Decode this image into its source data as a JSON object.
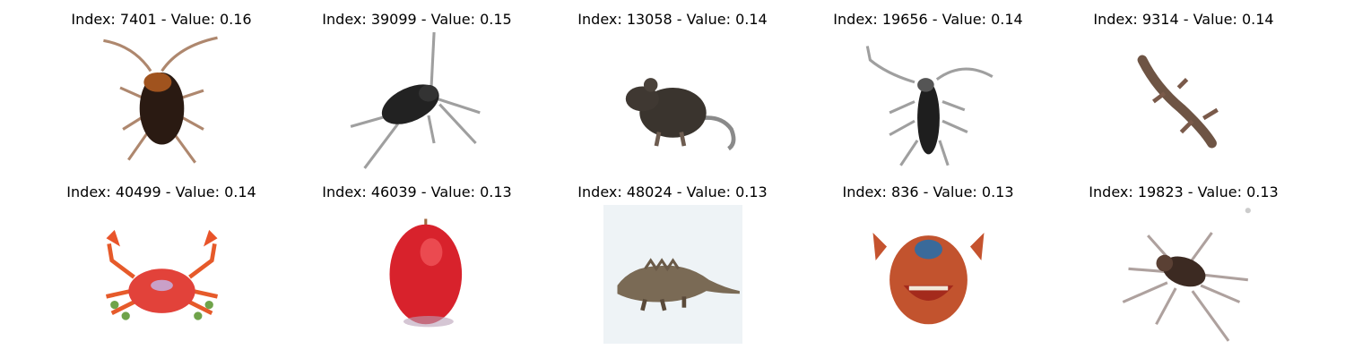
{
  "grid": {
    "rows": [
      [
        {
          "title": "Index: 7401 - Value: 0.16",
          "subject": "cockroach"
        },
        {
          "title": "Index: 39099 - Value: 0.15",
          "subject": "cricket"
        },
        {
          "title": "Index: 13058 - Value: 0.14",
          "subject": "rat"
        },
        {
          "title": "Index: 19656 - Value: 0.14",
          "subject": "longhorn-beetle"
        },
        {
          "title": "Index: 9314 - Value: 0.14",
          "subject": "lizard"
        }
      ],
      [
        {
          "title": "Index: 40499 - Value: 0.14",
          "subject": "crab"
        },
        {
          "title": "Index: 46039 - Value: 0.13",
          "subject": "apple"
        },
        {
          "title": "Index: 48024 - Value: 0.13",
          "subject": "dinosaur"
        },
        {
          "title": "Index: 836 - Value: 0.13",
          "subject": "crab-face"
        },
        {
          "title": "Index: 19823 - Value: 0.13",
          "subject": "spider"
        }
      ]
    ]
  }
}
